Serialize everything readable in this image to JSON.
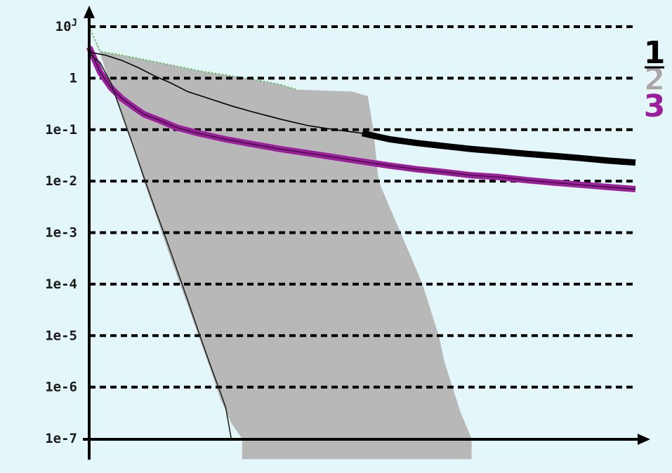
{
  "chart_data": {
    "type": "line",
    "title": "",
    "xlabel": "",
    "ylabel": "",
    "y_scale": "log",
    "ylim": [
      1e-07,
      10
    ],
    "xlim": [
      0,
      100
    ],
    "x_tick_labels": [],
    "y_ticks": [
      {
        "value": 10,
        "label": "10",
        "sup": "J"
      },
      {
        "value": 1,
        "label": "1"
      },
      {
        "value": 0.1,
        "label": "1e-1"
      },
      {
        "value": 0.01,
        "label": "1e-2"
      },
      {
        "value": 0.001,
        "label": "1e-3"
      },
      {
        "value": 0.0001,
        "label": "1e-4"
      },
      {
        "value": 1e-05,
        "label": "1e-5"
      },
      {
        "value": 1e-06,
        "label": "1e-6"
      },
      {
        "value": 1e-07,
        "label": "1e-7"
      }
    ],
    "grid": "horizontal dashed",
    "legend": {
      "placement": "right",
      "entries": [
        "1",
        "2",
        "3"
      ]
    },
    "colors": {
      "background": "#e3f6fa",
      "series_1": "#000000",
      "series_2": "#a8a8a8",
      "series_3": "#9b1f9b",
      "band": "#b8b8b8",
      "band_edge": "#55c055",
      "grid": "#000000",
      "axis": "#000000"
    },
    "band": {
      "upper": [
        [
          0,
          10
        ],
        [
          2,
          3.3
        ],
        [
          6,
          2.8
        ],
        [
          10,
          2.3
        ],
        [
          15,
          1.8
        ],
        [
          20,
          1.4
        ],
        [
          25,
          1.15
        ],
        [
          30,
          0.95
        ],
        [
          35,
          0.75
        ],
        [
          38,
          0.6
        ],
        [
          48,
          0.55
        ],
        [
          51,
          0.45
        ],
        [
          52,
          0.1
        ],
        [
          53,
          0.01
        ],
        [
          55,
          0.0031
        ],
        [
          57,
          0.001
        ],
        [
          59,
          0.00032
        ],
        [
          61,
          0.0001
        ],
        [
          62.5,
          3.16e-05
        ],
        [
          64,
          1e-05
        ],
        [
          65,
          3.2e-06
        ],
        [
          66.5,
          1e-06
        ],
        [
          68,
          3.2e-07
        ],
        [
          70,
          1e-07
        ]
      ],
      "lower": [
        [
          0,
          10
        ],
        [
          2,
          3
        ],
        [
          4,
          0.7
        ],
        [
          6,
          0.2
        ],
        [
          8,
          0.05
        ],
        [
          10,
          0.01
        ],
        [
          12,
          0.0025
        ],
        [
          14,
          0.0006
        ],
        [
          16,
          0.00015
        ],
        [
          18,
          4e-05
        ],
        [
          20,
          1e-05
        ],
        [
          22,
          2.5e-06
        ],
        [
          24,
          6e-07
        ],
        [
          26,
          2e-07
        ],
        [
          28,
          1e-07
        ]
      ]
    },
    "series": [
      {
        "name": "1",
        "values": [
          [
            0,
            3.2
          ],
          [
            3,
            2.8
          ],
          [
            6,
            2.2
          ],
          [
            9,
            1.6
          ],
          [
            12,
            1.1
          ],
          [
            15,
            0.8
          ],
          [
            18,
            0.55
          ],
          [
            22,
            0.4
          ],
          [
            26,
            0.29
          ],
          [
            30,
            0.22
          ],
          [
            35,
            0.16
          ],
          [
            40,
            0.12
          ],
          [
            45,
            0.1
          ],
          [
            50,
            0.085
          ],
          [
            55,
            0.065
          ],
          [
            60,
            0.055
          ],
          [
            65,
            0.048
          ],
          [
            70,
            0.042
          ],
          [
            75,
            0.038
          ],
          [
            80,
            0.034
          ],
          [
            85,
            0.031
          ],
          [
            90,
            0.028
          ],
          [
            95,
            0.025
          ],
          [
            100,
            0.023
          ]
        ]
      },
      {
        "name": "2",
        "values": [
          [
            0,
            3
          ],
          [
            2,
            2
          ],
          [
            4,
            0.8
          ],
          [
            6,
            0.2
          ],
          [
            8,
            0.05
          ],
          [
            10,
            0.012
          ],
          [
            12,
            0.003
          ],
          [
            14,
            0.0008
          ],
          [
            16,
            0.0002
          ],
          [
            18,
            5e-05
          ],
          [
            20,
            1.2e-05
          ],
          [
            22,
            3e-06
          ],
          [
            24,
            8e-07
          ],
          [
            25,
            4e-07
          ],
          [
            26,
            1e-07
          ]
        ]
      },
      {
        "name": "3",
        "values": [
          [
            0,
            4
          ],
          [
            2,
            1.3
          ],
          [
            4,
            0.65
          ],
          [
            6,
            0.4
          ],
          [
            8,
            0.28
          ],
          [
            10,
            0.2
          ],
          [
            13,
            0.15
          ],
          [
            16,
            0.11
          ],
          [
            20,
            0.085
          ],
          [
            25,
            0.065
          ],
          [
            30,
            0.052
          ],
          [
            35,
            0.042
          ],
          [
            40,
            0.035
          ],
          [
            45,
            0.029
          ],
          [
            50,
            0.024
          ],
          [
            55,
            0.02
          ],
          [
            60,
            0.017
          ],
          [
            65,
            0.015
          ],
          [
            70,
            0.013
          ],
          [
            75,
            0.012
          ],
          [
            80,
            0.0105
          ],
          [
            85,
            0.0094
          ],
          [
            90,
            0.0085
          ],
          [
            95,
            0.0077
          ],
          [
            100,
            0.007
          ]
        ]
      }
    ]
  }
}
